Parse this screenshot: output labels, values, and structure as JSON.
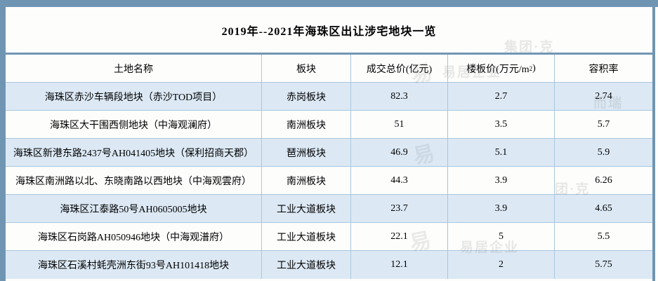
{
  "title": "2019年--2021年海珠区出让涉宅地块一览",
  "table": {
    "columns": [
      "土地名称",
      "板块",
      "成交总价(亿元)",
      "楼板价(万元/m²)",
      "容积率"
    ],
    "rows": [
      {
        "name": "海珠区赤沙车辆段地块（赤沙TOD项目）",
        "plate": "赤岗板块",
        "total_price": "82.3",
        "floor_price": "2.7",
        "plot_ratio": "2.74"
      },
      {
        "name": "海珠区大干围西侧地块（中海观澜府）",
        "plate": "南洲板块",
        "total_price": "51",
        "floor_price": "3.5",
        "plot_ratio": "5.7"
      },
      {
        "name": "海珠区新港东路2437号AH041405地块（保利招商天郡）",
        "plate": "琶洲板块",
        "total_price": "46.9",
        "floor_price": "5.1",
        "plot_ratio": "5.9"
      },
      {
        "name": "海珠区南洲路以北、东晓南路以西地块（中海观雲府）",
        "plate": "南洲板块",
        "total_price": "44.3",
        "floor_price": "3.9",
        "plot_ratio": "6.26"
      },
      {
        "name": "海珠区江泰路50号AH0605005地块",
        "plate": "工业大道板块",
        "total_price": "23.7",
        "floor_price": "3.9",
        "plot_ratio": "4.65"
      },
      {
        "name": "海珠区石岗路AH050946地块（中海观潽府）",
        "plate": "工业大道板块",
        "total_price": "22.1",
        "floor_price": "5",
        "plot_ratio": "5.5"
      },
      {
        "name": "海珠区石溪村蚝壳洲东街93号AH101418地块",
        "plate": "工业大道板块",
        "total_price": "12.1",
        "floor_price": "2",
        "plot_ratio": "5.75"
      }
    ]
  },
  "watermark": {
    "full": "易居企业集团·克而瑞",
    "fragments": [
      "集团·克",
      "易居企业",
      "而瑞",
      "团·克",
      "易居企业",
      "易",
      "易",
      "易"
    ]
  },
  "colors": {
    "frame_blue": "#7095b3",
    "divider_blue": "#7296b4",
    "grid_line": "#a9c6de",
    "row_highlight": "#dce9f5",
    "row_plain": "#fdfdfc",
    "text": "#000000"
  }
}
